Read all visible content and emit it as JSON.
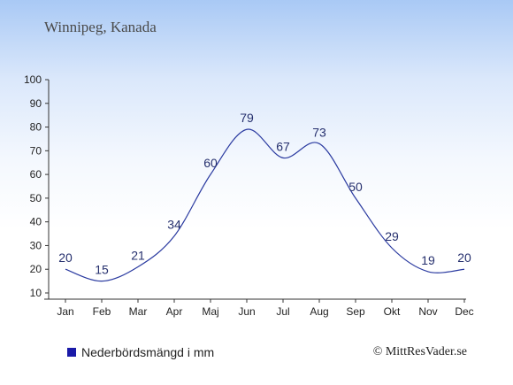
{
  "chart_data": {
    "type": "line",
    "title": "Winnipeg, Kanada",
    "categories": [
      "Jan",
      "Feb",
      "Mar",
      "Apr",
      "Maj",
      "Jun",
      "Jul",
      "Aug",
      "Sep",
      "Okt",
      "Nov",
      "Dec"
    ],
    "series": [
      {
        "name": "Nederbördsmängd i mm",
        "values": [
          20,
          15,
          21,
          34,
          60,
          79,
          67,
          73,
          50,
          29,
          19,
          20
        ]
      }
    ],
    "yticks": [
      "10",
      "20",
      "30",
      "40",
      "50",
      "60",
      "70",
      "80",
      "90",
      "100"
    ],
    "ylim": [
      10,
      100
    ],
    "grid": false,
    "legend_position": "bottom-left",
    "line_color": "#2a3aa0",
    "legend_color": "#1a1aa8",
    "credit": "© MittResVader.se"
  }
}
